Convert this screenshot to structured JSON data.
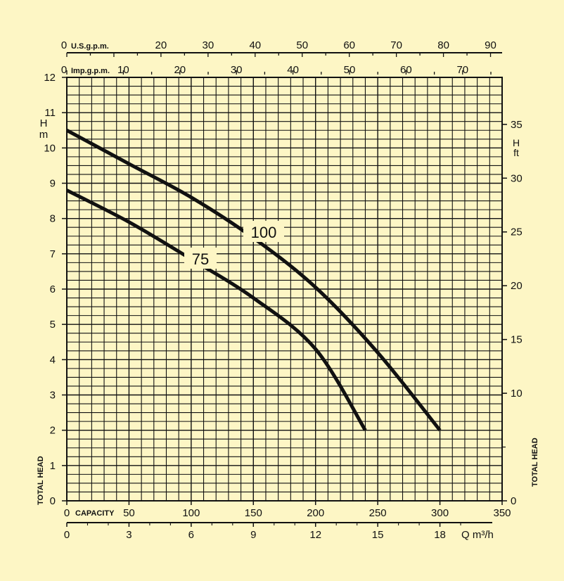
{
  "colors": {
    "background": "#fdf6c5",
    "ink": "#111111"
  },
  "chart_data": {
    "type": "line",
    "grid": true,
    "x_lpm": {
      "lim": [
        0,
        350
      ],
      "ticks": [
        0,
        50,
        100,
        150,
        200,
        250,
        300,
        350
      ],
      "label": "CAPACITY"
    },
    "x_m3h": {
      "ticks": [
        0,
        3,
        6,
        9,
        12,
        15,
        18
      ],
      "label": "Q m³/h"
    },
    "x_usgpm": {
      "ticks": [
        0,
        20,
        30,
        40,
        50,
        60,
        70,
        80,
        90
      ],
      "label": "U.S.g.p.m."
    },
    "x_impgpm": {
      "ticks": [
        0,
        10,
        20,
        30,
        40,
        50,
        60,
        70
      ],
      "label": "Imp.g.p.m."
    },
    "y_m": {
      "lim": [
        0,
        12
      ],
      "ticks": [
        0,
        1,
        2,
        3,
        4,
        5,
        6,
        7,
        8,
        9,
        10,
        11,
        12
      ],
      "unit": "H\nm",
      "label": "TOTAL HEAD"
    },
    "y_ft": {
      "ticks": [
        0,
        10,
        15,
        20,
        25,
        30,
        35
      ],
      "unit": "H\nft",
      "label": "TOTAL HEAD"
    },
    "series": [
      {
        "name": "100",
        "x": [
          0,
          50,
          100,
          150,
          200,
          250,
          300
        ],
        "y": [
          10.5,
          9.55,
          8.6,
          7.45,
          6.05,
          4.2,
          2.0
        ]
      },
      {
        "name": "75",
        "x": [
          0,
          50,
          100,
          150,
          200,
          240
        ],
        "y": [
          8.8,
          7.9,
          6.85,
          5.75,
          4.3,
          2.0
        ]
      }
    ]
  }
}
